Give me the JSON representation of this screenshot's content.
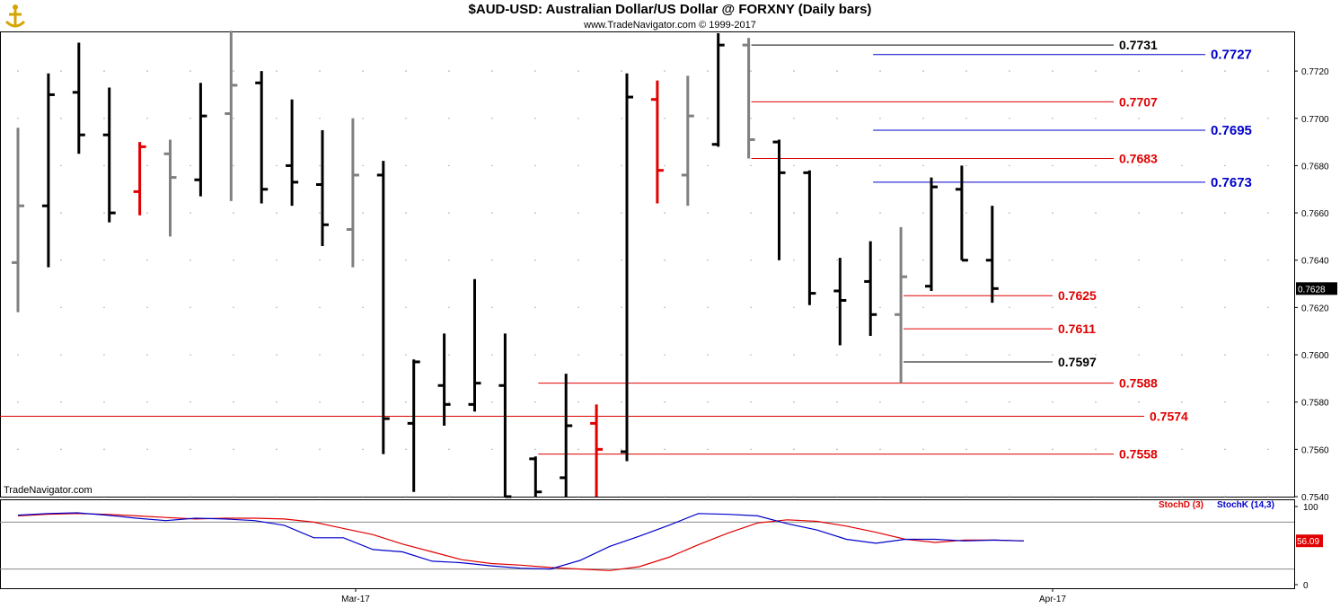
{
  "header": {
    "title": "$AUD-USD:  Australian Dollar/US Dollar @ FORXNY  (Daily bars)",
    "subtitle": "www.TradeNavigator.com © 1999-2017",
    "watermark": "TradeNavigator.com"
  },
  "colors": {
    "up_bar": "#000000",
    "down_bar": "#808080",
    "highlight_bar": "#e00000",
    "red_level": "#e00000",
    "blue_level": "#0000cc",
    "black_level": "#000000",
    "stochD": "#e00000",
    "stochK": "#0000cc",
    "last_price_bg": "#000000",
    "stoch_last_bg": "#e00000"
  },
  "chart_data": [
    {
      "type": "ohlc",
      "ylim": [
        0.754,
        0.7736
      ],
      "yticks": [
        "0.7720",
        "0.7700",
        "0.7680",
        "0.7660",
        "0.7640",
        "0.7620",
        "0.7600",
        "0.7580",
        "0.7560",
        "0.7540"
      ],
      "xticks": [
        "Mar-17",
        "Apr-17"
      ],
      "last_price": "0.7628",
      "bars": [
        {
          "o": 0.7639,
          "h": 0.7696,
          "l": 0.7618,
          "c": 0.7663,
          "color": "gray"
        },
        {
          "o": 0.7663,
          "h": 0.7719,
          "l": 0.7637,
          "c": 0.771,
          "color": "black"
        },
        {
          "o": 0.7711,
          "h": 0.7732,
          "l": 0.7685,
          "c": 0.7693,
          "color": "black"
        },
        {
          "o": 0.7693,
          "h": 0.7713,
          "l": 0.7656,
          "c": 0.766,
          "color": "black"
        },
        {
          "o": 0.7669,
          "h": 0.769,
          "l": 0.7659,
          "c": 0.7688,
          "color": "red"
        },
        {
          "o": 0.7685,
          "h": 0.7691,
          "l": 0.765,
          "c": 0.7675,
          "color": "gray"
        },
        {
          "o": 0.7674,
          "h": 0.7715,
          "l": 0.7667,
          "c": 0.7701,
          "color": "black"
        },
        {
          "o": 0.7702,
          "h": 0.7737,
          "l": 0.7665,
          "c": 0.7714,
          "color": "gray"
        },
        {
          "o": 0.7715,
          "h": 0.772,
          "l": 0.7664,
          "c": 0.767,
          "color": "black"
        },
        {
          "o": 0.768,
          "h": 0.7708,
          "l": 0.7663,
          "c": 0.7673,
          "color": "black"
        },
        {
          "o": 0.7672,
          "h": 0.7695,
          "l": 0.7646,
          "c": 0.7655,
          "color": "black"
        },
        {
          "o": 0.7653,
          "h": 0.77,
          "l": 0.7637,
          "c": 0.7676,
          "color": "gray"
        },
        {
          "o": 0.7676,
          "h": 0.7682,
          "l": 0.7558,
          "c": 0.7573,
          "color": "black"
        },
        {
          "o": 0.7571,
          "h": 0.7598,
          "l": 0.7542,
          "c": 0.7597,
          "color": "black"
        },
        {
          "o": 0.7587,
          "h": 0.7609,
          "l": 0.757,
          "c": 0.7579,
          "color": "black"
        },
        {
          "o": 0.7579,
          "h": 0.7632,
          "l": 0.7576,
          "c": 0.7588,
          "color": "black"
        },
        {
          "o": 0.7587,
          "h": 0.7609,
          "l": 0.754,
          "c": 0.754,
          "color": "black"
        },
        {
          "o": 0.7556,
          "h": 0.7557,
          "l": 0.754,
          "c": 0.7542,
          "color": "black"
        },
        {
          "o": 0.7548,
          "h": 0.7592,
          "l": 0.754,
          "c": 0.757,
          "color": "black"
        },
        {
          "o": 0.7571,
          "h": 0.7579,
          "l": 0.754,
          "c": 0.756,
          "color": "red"
        },
        {
          "o": 0.7559,
          "h": 0.7719,
          "l": 0.7555,
          "c": 0.7709,
          "color": "black"
        },
        {
          "o": 0.7708,
          "h": 0.7716,
          "l": 0.7664,
          "c": 0.7678,
          "color": "red"
        },
        {
          "o": 0.7676,
          "h": 0.7718,
          "l": 0.7663,
          "c": 0.7701,
          "color": "gray"
        },
        {
          "o": 0.7689,
          "h": 0.7736,
          "l": 0.7688,
          "c": 0.7731,
          "color": "black"
        },
        {
          "o": 0.7731,
          "h": 0.7734,
          "l": 0.7683,
          "c": 0.7691,
          "color": "gray"
        },
        {
          "o": 0.769,
          "h": 0.7691,
          "l": 0.764,
          "c": 0.7677,
          "color": "black"
        },
        {
          "o": 0.7677,
          "h": 0.7678,
          "l": 0.7621,
          "c": 0.7626,
          "color": "black"
        },
        {
          "o": 0.7627,
          "h": 0.7641,
          "l": 0.7604,
          "c": 0.7623,
          "color": "black"
        },
        {
          "o": 0.7631,
          "h": 0.7648,
          "l": 0.7608,
          "c": 0.7617,
          "color": "black"
        },
        {
          "o": 0.7617,
          "h": 0.7654,
          "l": 0.7588,
          "c": 0.7633,
          "color": "gray"
        },
        {
          "o": 0.7629,
          "h": 0.7675,
          "l": 0.7627,
          "c": 0.7671,
          "color": "black"
        },
        {
          "o": 0.767,
          "h": 0.768,
          "l": 0.764,
          "c": 0.764,
          "color": "black"
        },
        {
          "o": 0.764,
          "h": 0.7663,
          "l": 0.7622,
          "c": 0.7628,
          "color": "black"
        }
      ],
      "levels": [
        {
          "value": 0.7731,
          "label": "0.7731",
          "color": "black",
          "from_bar": 24,
          "label_x": "right"
        },
        {
          "value": 0.7727,
          "label": "0.7727",
          "color": "blue",
          "from_bar": 28,
          "label_x": "far"
        },
        {
          "value": 0.7707,
          "label": "0.7707",
          "color": "red",
          "from_bar": 24,
          "label_x": "right"
        },
        {
          "value": 0.7695,
          "label": "0.7695",
          "color": "blue",
          "from_bar": 28,
          "label_x": "far"
        },
        {
          "value": 0.7683,
          "label": "0.7683",
          "color": "red",
          "from_bar": 24,
          "label_x": "right"
        },
        {
          "value": 0.7673,
          "label": "0.7673",
          "color": "blue",
          "from_bar": 28,
          "label_x": "far"
        },
        {
          "value": 0.7625,
          "label": "0.7625",
          "color": "red",
          "from_bar": 29,
          "label_x": "near"
        },
        {
          "value": 0.7611,
          "label": "0.7611",
          "color": "red",
          "from_bar": 29,
          "label_x": "near"
        },
        {
          "value": 0.7597,
          "label": "0.7597",
          "color": "black",
          "from_bar": 29,
          "label_x": "near"
        },
        {
          "value": 0.7588,
          "label": "0.7588",
          "color": "red",
          "from_bar": 17,
          "label_x": "right"
        },
        {
          "value": 0.7574,
          "label": "0.7574",
          "color": "red",
          "from_bar": -1,
          "label_x": "mid"
        },
        {
          "value": 0.7558,
          "label": "0.7558",
          "color": "red",
          "from_bar": 17,
          "label_x": "right"
        }
      ]
    },
    {
      "type": "line",
      "title_D": "StochD (3)",
      "title_K": "StochK (14,3)",
      "ylim": [
        0,
        100
      ],
      "yticks": [
        "100",
        "0"
      ],
      "hlines": [
        80,
        20
      ],
      "last_value": "56.09",
      "series": [
        {
          "name": "StochD (3)",
          "color": "red",
          "values": [
            88,
            90,
            91,
            90,
            88,
            86,
            84,
            85,
            85,
            84,
            80,
            72,
            64,
            52,
            42,
            32,
            27,
            25,
            22,
            20,
            18,
            23,
            35,
            51,
            66,
            79,
            83,
            81,
            75,
            67,
            58,
            54,
            57,
            57,
            56
          ]
        },
        {
          "name": "StochK (14,3)",
          "color": "blue",
          "values": [
            89,
            91,
            92,
            89,
            85,
            82,
            85,
            84,
            82,
            76,
            60,
            60,
            45,
            42,
            30,
            28,
            24,
            21,
            20,
            31,
            49,
            62,
            76,
            91,
            90,
            88,
            78,
            70,
            58,
            53,
            58,
            58,
            56,
            57,
            56
          ]
        }
      ]
    }
  ]
}
